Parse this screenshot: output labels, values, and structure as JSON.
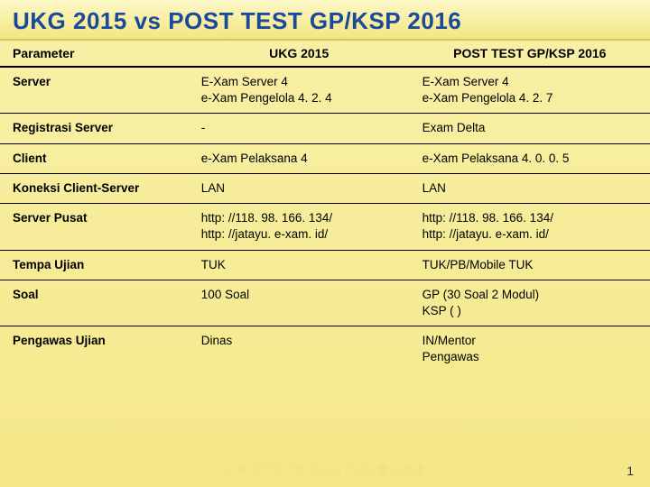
{
  "title": "UKG 2015 vs POST TEST GP/KSP 2016",
  "headers": {
    "param": "Parameter",
    "col2": "UKG 2015",
    "col3": "POST TEST GP/KSP 2016"
  },
  "rows": [
    {
      "param": "Server",
      "c2": "E-Xam Server 4\ne-Xam Pengelola 4. 2. 4",
      "c3": "E-Xam Server 4\ne-Xam Pengelola 4. 2. 7"
    },
    {
      "param": "Registrasi Server",
      "c2": "-",
      "c3": "Exam Delta"
    },
    {
      "param": "Client",
      "c2": "e-Xam Pelaksana 4",
      "c3": "e-Xam Pelaksana 4. 0. 0. 5"
    },
    {
      "param": "Koneksi Client-Server",
      "c2": "LAN",
      "c3": "LAN"
    },
    {
      "param": "Server Pusat",
      "c2": "http: //118. 98. 166. 134/\nhttp: //jatayu. e-xam. id/",
      "c3": "http: //118. 98. 166. 134/\nhttp: //jatayu. e-xam. id/"
    },
    {
      "param": "Tempa Ujian",
      "c2": "TUK",
      "c3": "TUK/PB/Mobile TUK"
    },
    {
      "param": "Soal",
      "c2": "100 Soal",
      "c3": "GP (30 Soal 2 Modul)\nKSP ( )"
    },
    {
      "param": "Pengawas Ujian",
      "c2": "Dinas",
      "c3": "IN/Mentor\nPengawas"
    }
  ],
  "footer": "PPPPTK TK DAN PLB © 2016",
  "page_number": "1",
  "colors": {
    "title_color": "#1a4a9c",
    "bg_top": "#f8f0a8",
    "bg_bottom": "#f5e889",
    "border": "#000000",
    "footer_color": "#f6ea8c"
  }
}
